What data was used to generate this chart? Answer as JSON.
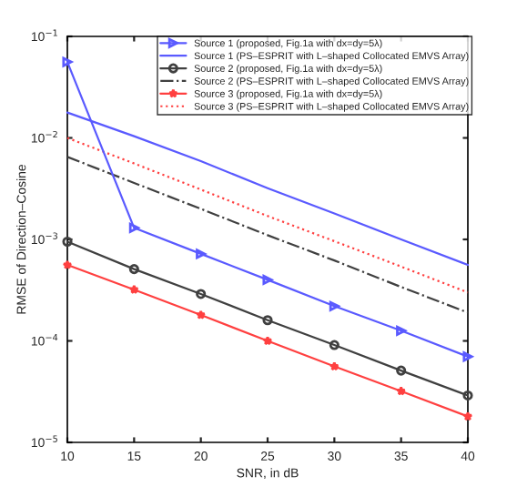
{
  "chart_data": {
    "type": "line",
    "xlabel": "SNR, in dB",
    "ylabel": "RMSE of Direction–Cosine",
    "x": [
      10,
      15,
      20,
      25,
      30,
      35,
      40
    ],
    "series": [
      {
        "name": "Source 1 (proposed, Fig.1a with dx=dy=5λ)",
        "color": "#5a5aff",
        "marker": "triangle",
        "line_style": "solid",
        "values": [
          0.056,
          0.0013,
          0.00072,
          0.0004,
          0.00022,
          0.000126,
          7e-05
        ]
      },
      {
        "name": "Source 1 (PS–ESPRIT with L–shaped Collocated EMVS Array)",
        "color": "#5a5aff",
        "marker": "none",
        "line_style": "solid",
        "values": [
          0.0178,
          0.0104,
          0.0059,
          0.0032,
          0.0018,
          0.001,
          0.00056
        ]
      },
      {
        "name": "Source 2 (proposed, Fig.1a with dx=dy=5λ)",
        "color": "#404040",
        "marker": "circle",
        "line_style": "solid",
        "values": [
          0.00095,
          0.00051,
          0.00029,
          0.00016,
          9.1e-05,
          5.1e-05,
          2.9e-05
        ]
      },
      {
        "name": "Source 2 (PS–ESPRIT with L–shaped Collocated EMVS Array)",
        "color": "#404040",
        "marker": "none",
        "line_style": "dashdot",
        "values": [
          0.0065,
          0.0036,
          0.002,
          0.0011,
          0.00062,
          0.00034,
          0.00019
        ]
      },
      {
        "name": "Source 3 (proposed, Fig.1a with dx=dy=5λ)",
        "color": "#ff4040",
        "marker": "star",
        "line_style": "solid",
        "values": [
          0.00056,
          0.00032,
          0.00018,
          0.0001,
          5.6e-05,
          3.2e-05,
          1.8e-05
        ]
      },
      {
        "name": "Source 3 (PS–ESPRIT with L–shaped Collocated EMVS Array)",
        "color": "#ff4040",
        "marker": "none",
        "line_style": "dotted",
        "values": [
          0.01,
          0.0056,
          0.0031,
          0.0017,
          0.00096,
          0.00054,
          0.0003
        ]
      }
    ],
    "log": "y",
    "xlim": [
      10,
      40
    ],
    "xticks": [
      10,
      15,
      20,
      25,
      30,
      35,
      40
    ],
    "ylim": [
      1e-05,
      0.1
    ],
    "yticks": [
      {
        "value": 1e-05,
        "label": "10$^{−5}$"
      },
      {
        "value": 0.0001,
        "label": "10$^{−4}$"
      },
      {
        "value": 0.001,
        "label": "10$^{−3}$"
      },
      {
        "value": 0.01,
        "label": "10$^{−2}$"
      },
      {
        "value": 0.1,
        "label": "10$^{−1}$"
      }
    ],
    "grid": false,
    "legend": "top right"
  }
}
